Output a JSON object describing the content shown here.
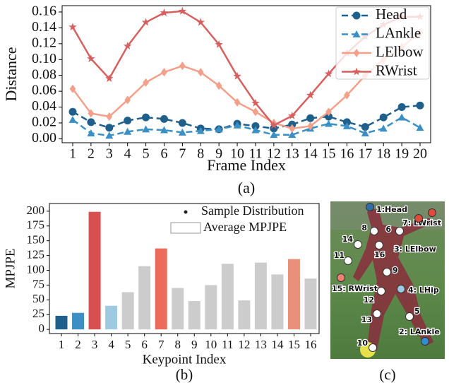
{
  "chart_data": [
    {
      "type": "line",
      "caption": "(a)",
      "x_label": "Frame Index",
      "y_label": "Distance",
      "categories": [
        "1",
        "2",
        "3",
        "4",
        "5",
        "6",
        "7",
        "8",
        "9",
        "10",
        "11",
        "12",
        "13",
        "14",
        "15",
        "16",
        "17",
        "18",
        "19",
        "20"
      ],
      "ylim": [
        -0.005,
        0.168
      ],
      "yticks": [
        {
          "value": 0,
          "label": "0.00"
        },
        0.02,
        0.04,
        0.06,
        0.08,
        {
          "value": 0.1,
          "label": "0.10"
        },
        0.12,
        0.14,
        0.16
      ],
      "legend": "upper right",
      "series": [
        {
          "name": "Head",
          "color": "#1f5f8b",
          "linestyle": "dashed",
          "marker": "circle",
          "values": [
            0.034,
            0.021,
            0.014,
            0.023,
            0.027,
            0.025,
            0.02,
            0.013,
            0.012,
            0.019,
            0.016,
            0.013,
            0.018,
            0.026,
            0.028,
            0.021,
            0.015,
            0.027,
            0.04,
            0.042
          ]
        },
        {
          "name": "LAnkle",
          "color": "#3a8fc4",
          "linestyle": "dashed",
          "marker": "triangle",
          "values": [
            0.024,
            0.007,
            0.004,
            0.009,
            0.012,
            0.011,
            0.008,
            0.01,
            0.012,
            0.017,
            0.011,
            0.005,
            0.005,
            0.013,
            0.019,
            0.016,
            0.007,
            0.013,
            0.027,
            0.014
          ]
        },
        {
          "name": "LElbow",
          "color": "#f2a08a",
          "linestyle": "solid",
          "marker": "diamond",
          "values": [
            0.063,
            0.032,
            0.028,
            0.049,
            0.071,
            0.084,
            0.092,
            0.084,
            0.067,
            0.046,
            0.034,
            0.02,
            0.013,
            0.016,
            0.034,
            0.055,
            0.08,
            0.1,
            0.116,
            0.134
          ]
        },
        {
          "name": "RWrist",
          "color": "#d66060",
          "linestyle": "solid",
          "marker": "star",
          "values": [
            0.141,
            0.101,
            0.076,
            0.117,
            0.147,
            0.159,
            0.161,
            0.147,
            0.119,
            0.079,
            0.045,
            0.017,
            0.029,
            0.055,
            0.082,
            0.108,
            0.129,
            0.144,
            0.154,
            0.154
          ]
        }
      ]
    },
    {
      "type": "bar",
      "caption": "(b)",
      "x_label": "Keypoint Index",
      "y_label": "MPJPE",
      "categories": [
        "1",
        "2",
        "3",
        "4",
        "5",
        "6",
        "7",
        "8",
        "9",
        "10",
        "11",
        "12",
        "13",
        "14",
        "15",
        "16"
      ],
      "values": [
        23,
        28,
        199,
        40,
        63,
        107,
        137,
        70,
        48,
        75,
        111,
        49,
        113,
        93,
        119,
        86
      ],
      "colors": [
        "#1f5f8b",
        "#3a8fc4",
        "#d6504f",
        "#9ecae1",
        "#cccccc",
        "#cccccc",
        "#ee6a5a",
        "#cccccc",
        "#cccccc",
        "#cccccc",
        "#cccccc",
        "#cccccc",
        "#cccccc",
        "#cccccc",
        "#e8907a",
        "#cccccc"
      ],
      "ylim": [
        -7,
        213
      ],
      "yticks": [
        0,
        25,
        50,
        75,
        100,
        125,
        150,
        175,
        200
      ],
      "legend_labels": [
        "Sample Distribution",
        "Average MPJPE"
      ]
    }
  ],
  "photo": {
    "caption": "(c)",
    "keypoints": [
      {
        "label": "1:Head",
        "color": "#2f6fa6"
      },
      {
        "label": "8",
        "color": "#ffffff"
      },
      {
        "label": "6",
        "color": "#ffffff"
      },
      {
        "label": "7: LWrist",
        "color": "#e04b3c"
      },
      {
        "label": "3: LElbow",
        "color": "#e04b3c"
      },
      {
        "label": "14",
        "color": "#ffffff"
      },
      {
        "label": "16",
        "color": "#ffffff"
      },
      {
        "label": "11",
        "color": "#ffffff"
      },
      {
        "label": "9",
        "color": "#ffffff"
      },
      {
        "label": "15: RWrist",
        "color": "#f08070"
      },
      {
        "label": "4: LHip",
        "color": "#9ecae1"
      },
      {
        "label": "12",
        "color": "#ffffff"
      },
      {
        "label": "5",
        "color": "#ffffff"
      },
      {
        "label": "13",
        "color": "#ffffff"
      },
      {
        "label": "2: LAnkle",
        "color": "#2f8fd0"
      },
      {
        "label": "10",
        "color": "#ffffff"
      }
    ]
  }
}
